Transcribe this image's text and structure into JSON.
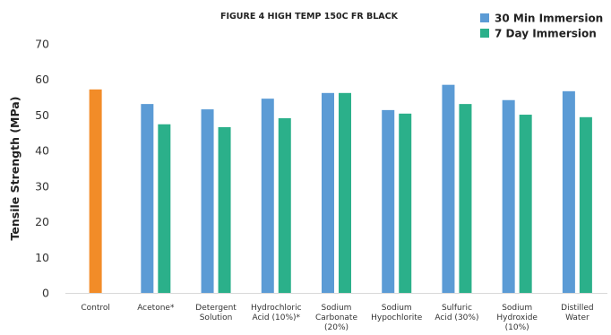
{
  "chart_data": {
    "type": "bar",
    "title": "FIGURE 4 HIGH TEMP 150C FR BLACK",
    "ylabel": "Tensile Strength (MPa)",
    "xlabel": "",
    "ylim": [
      0,
      70
    ],
    "yticks": [
      0,
      10,
      20,
      30,
      40,
      50,
      60,
      70
    ],
    "grid": false,
    "legend_position": "top-right",
    "categories": [
      {
        "lines": [
          "Control"
        ]
      },
      {
        "lines": [
          "Acetone*"
        ]
      },
      {
        "lines": [
          "Detergent",
          "Solution"
        ]
      },
      {
        "lines": [
          "Hydrochloric",
          "Acid (10%)*"
        ]
      },
      {
        "lines": [
          "Sodium",
          "Carbonate",
          "(20%)"
        ]
      },
      {
        "lines": [
          "Sodium",
          "Hypochlorite"
        ]
      },
      {
        "lines": [
          "Sulfuric",
          "Acid (30%)"
        ]
      },
      {
        "lines": [
          "Sodium",
          "Hydroxide",
          "(10%)"
        ]
      },
      {
        "lines": [
          "Distilled",
          "Water"
        ]
      }
    ],
    "control": {
      "value": 57.2,
      "color": "#F28C28"
    },
    "series": [
      {
        "name": "30 Min Immersion",
        "color": "#5B9BD5",
        "values": [
          null,
          53.1,
          51.6,
          54.6,
          56.2,
          51.4,
          58.5,
          54.2,
          56.7
        ]
      },
      {
        "name": "7 Day Immersion",
        "color": "#2BB08A",
        "values": [
          null,
          47.4,
          46.6,
          49.1,
          56.2,
          50.4,
          53.1,
          50.1,
          49.4
        ]
      }
    ]
  }
}
